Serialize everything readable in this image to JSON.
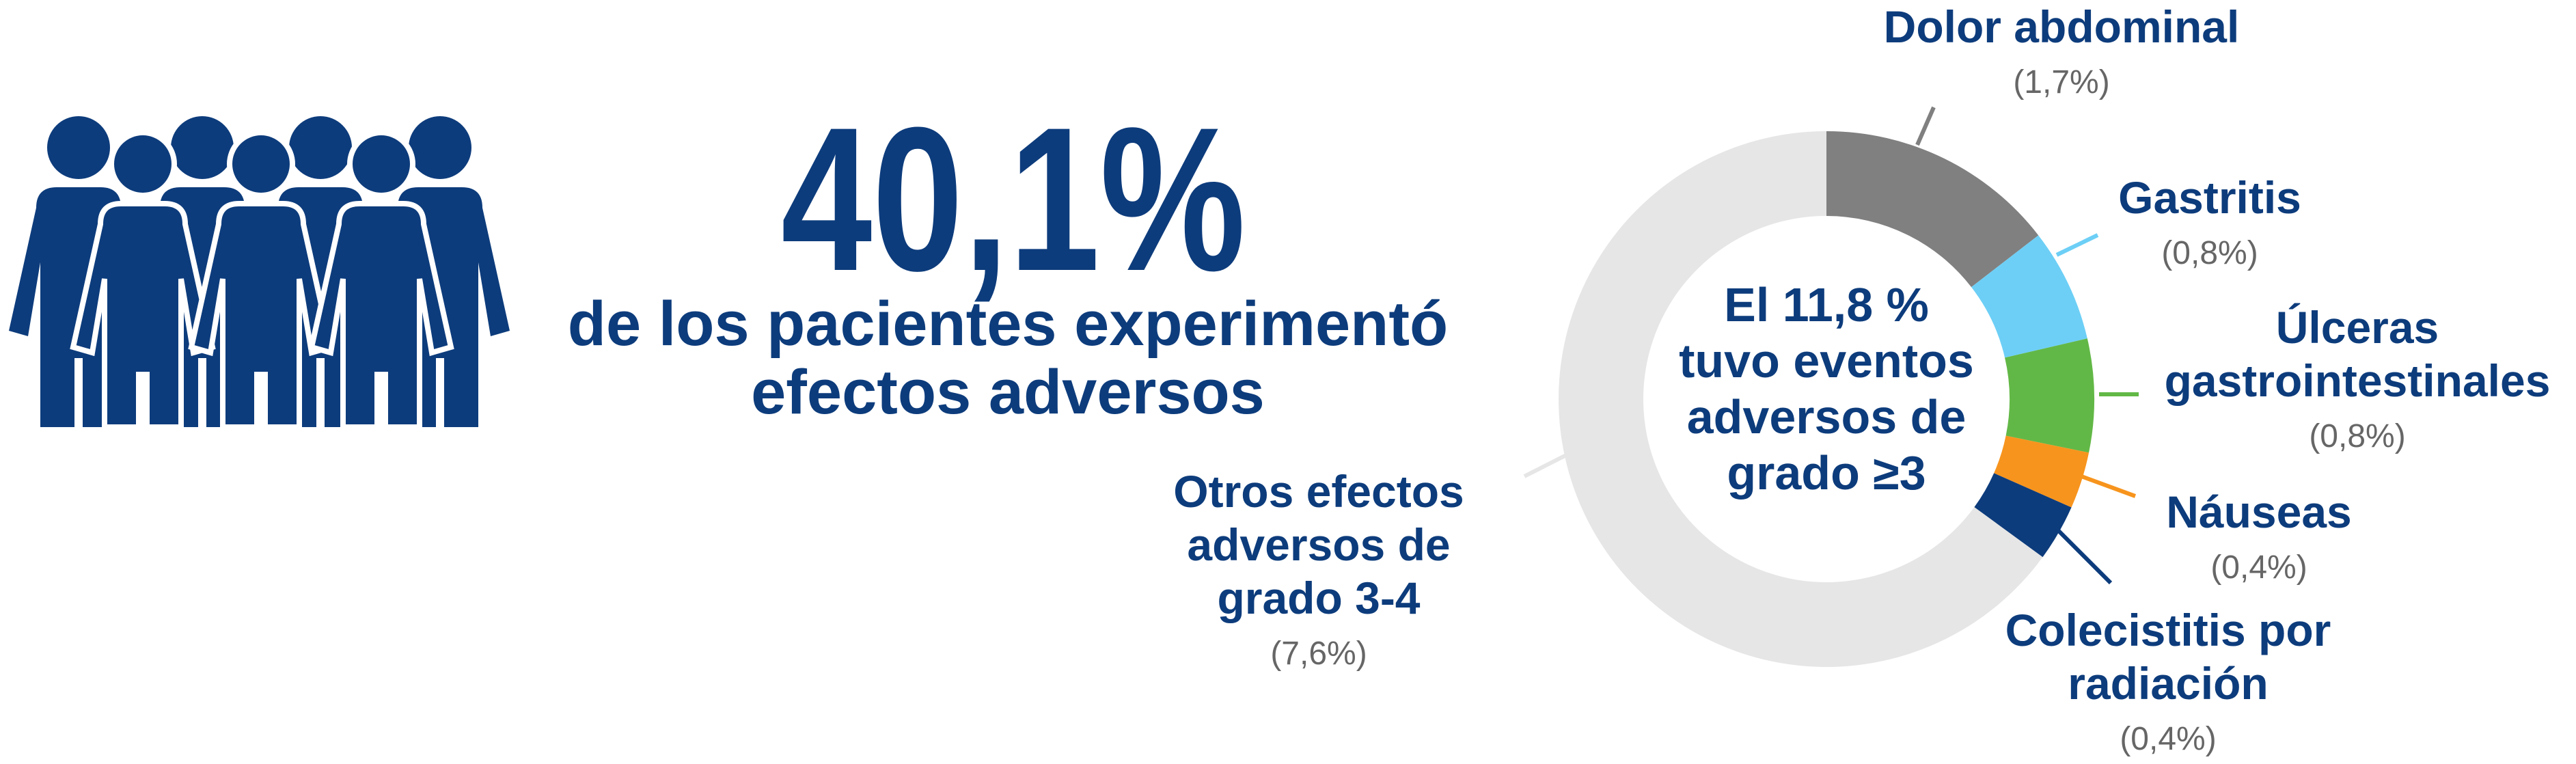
{
  "headline": {
    "stat": "40,1%",
    "text": "de los pacientes experimentó\nefectos adversos"
  },
  "chart_data": {
    "type": "donut",
    "center_text": "El 11,8 %\ntuvo eventos\nadversos de\ngrado ≥3",
    "categories": [
      "Dolor abdominal",
      "Gastritis",
      "Úlceras\ngastrointestinales",
      "Náuseas",
      "Colecistitis por\nradiación",
      "Otros efectos\nadversos de\ngrado 3-4"
    ],
    "values": [
      1.7,
      0.8,
      0.8,
      0.4,
      0.4,
      7.6
    ],
    "value_labels": [
      "(1,7%)",
      "(0,8%)",
      "(0,8%)",
      "(0,4%)",
      "(0,4%)",
      "(7,6%)"
    ],
    "colors": [
      "#808080",
      "#6dcff6",
      "#62b846",
      "#f7941d",
      "#0d3c7c",
      "#e6e6e6"
    ]
  }
}
